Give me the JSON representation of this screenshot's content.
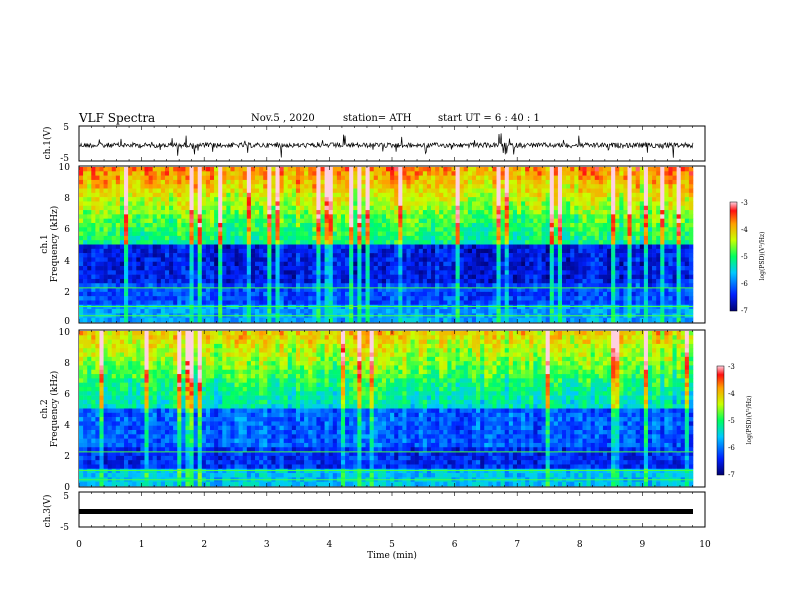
{
  "header": {
    "title": "VLF Spectra",
    "date": "Nov.5 , 2020",
    "station": "station= ATH",
    "start": "start UT = 6 : 40 : 1"
  },
  "chart_data": [
    {
      "type": "line",
      "panel": "ch1-voltage",
      "ylabel": "ch.1(V)",
      "ylim": [
        -5,
        5
      ],
      "y_ticks": [
        "5",
        "-5"
      ],
      "xlim": [
        0,
        10
      ],
      "description_of_series": "noisy waveform around -0.5 V with spikes"
    },
    {
      "type": "heatmap",
      "panel": "ch1-spectrogram",
      "ylabel_lines": [
        "ch.1",
        "Frequency (kHz)"
      ],
      "ylim": [
        0,
        10
      ],
      "y_ticks": [
        "0",
        "2",
        "4",
        "6",
        "8",
        "10"
      ],
      "xlim": [
        0,
        10
      ],
      "colorbar": {
        "label": "log(PSD)(V²/Hz)",
        "ticks": [
          "-3",
          "-4",
          "-5",
          "-6",
          "-7"
        ],
        "range": [
          -7,
          -3
        ]
      }
    },
    {
      "type": "heatmap",
      "panel": "ch2-spectrogram",
      "ylabel_lines": [
        "ch.2",
        "Frequency (kHz)"
      ],
      "ylim": [
        0,
        10
      ],
      "y_ticks": [
        "0",
        "2",
        "4",
        "6",
        "8",
        "10"
      ],
      "xlim": [
        0,
        10
      ],
      "colorbar": {
        "label": "log(PSD)(V²/Hz)",
        "ticks": [
          "-3",
          "-4",
          "-5",
          "-6",
          "-7"
        ],
        "range": [
          -7,
          -3
        ]
      }
    },
    {
      "type": "line",
      "panel": "ch3-voltage",
      "ylabel": "ch.3(V)",
      "ylim": [
        -5,
        5
      ],
      "y_ticks": [
        "5",
        "-5"
      ],
      "xlim": [
        0,
        10
      ],
      "xlabel": "Time (min)",
      "x_ticks": [
        "0",
        "1",
        "2",
        "3",
        "4",
        "5",
        "6",
        "7",
        "8",
        "9",
        "10"
      ],
      "constant_value": -1.2
    }
  ]
}
